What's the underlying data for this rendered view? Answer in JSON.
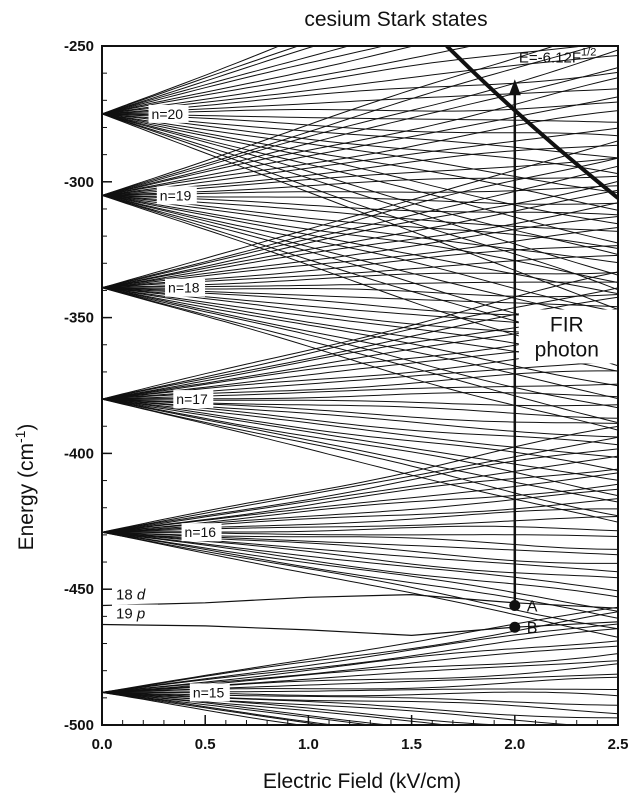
{
  "chart_data": {
    "type": "line",
    "title": "cesium Stark states",
    "xlabel": "Electric Field (kV/cm)",
    "ylabel": "Energy (cm",
    "ylabel_sup": "-1",
    "ylabel_end": ")",
    "xlim": [
      0.0,
      2.5
    ],
    "ylim": [
      -500,
      -250
    ],
    "xticks": [
      {
        "value": 0.0,
        "label": "0.0"
      },
      {
        "value": 0.5,
        "label": "0.5"
      },
      {
        "value": 1.0,
        "label": "1.0"
      },
      {
        "value": 1.5,
        "label": "1.5"
      },
      {
        "value": 2.0,
        "label": "2.0"
      },
      {
        "value": 2.5,
        "label": "2.5"
      }
    ],
    "yticks": [
      {
        "value": -250,
        "label": "-250"
      },
      {
        "value": -300,
        "label": "-300"
      },
      {
        "value": -350,
        "label": "-350"
      },
      {
        "value": -400,
        "label": "-400"
      },
      {
        "value": -450,
        "label": "-450"
      },
      {
        "value": -500,
        "label": "-500"
      }
    ],
    "grid": false,
    "manifolds": [
      {
        "label": "n=20",
        "energy": -275,
        "spread": 3.6
      },
      {
        "label": "n=19",
        "energy": -305,
        "spread": 3.2
      },
      {
        "label": "n=18",
        "energy": -339,
        "spread": 2.7
      },
      {
        "label": "n=17",
        "energy": -380,
        "spread": 2.3
      },
      {
        "label": "n=16",
        "energy": -429,
        "spread": 1.9
      },
      {
        "label": "n=15",
        "energy": -488,
        "spread": 1.55
      }
    ],
    "low_l_states": [
      {
        "label_main": "18",
        "label_l": "d",
        "x": [
          0.0,
          0.5,
          1.0,
          1.5,
          2.0,
          2.5
        ],
        "y": [
          -456,
          -455,
          -453,
          -452,
          -455,
          -457
        ]
      },
      {
        "label_main": "19",
        "label_l": "p",
        "x": [
          0.0,
          0.5,
          1.0,
          1.5,
          2.0,
          2.5
        ],
        "y": [
          -463,
          -463.5,
          -465,
          -467,
          -464,
          -462
        ]
      }
    ],
    "classical_limit": {
      "label": "E=-6.12F",
      "label_sup": "1/2",
      "x": [
        1.67,
        1.8,
        1.9,
        2.0,
        2.1,
        2.2,
        2.3,
        2.4,
        2.5
      ],
      "y": [
        -250,
        -259.6,
        -266.8,
        -273.7,
        -280.5,
        -287.1,
        -293.5,
        -299.8,
        -306.0
      ]
    },
    "transition": {
      "label_line1": "FIR",
      "label_line2": "photon",
      "x": 2.0,
      "from_y": -456,
      "to_y": -263
    },
    "points": [
      {
        "label": "A",
        "x": 2.0,
        "y": -456
      },
      {
        "label": "B",
        "x": 2.0,
        "y": -464
      }
    ]
  }
}
